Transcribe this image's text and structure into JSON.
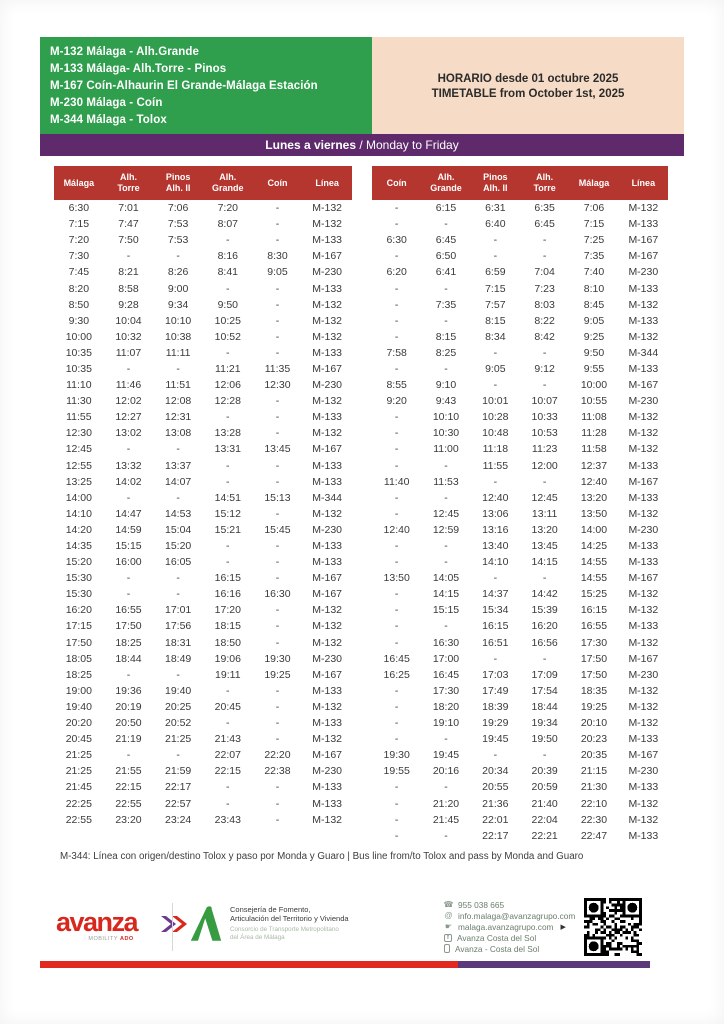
{
  "colors": {
    "route_green": "#2f9e4d",
    "schedule_peach": "#f6dcc6",
    "banner_purple": "#5f2a6b",
    "header_red": "#b5352f",
    "bar_red": "#e2291f",
    "bar_purple": "#5c3a7a",
    "avanza_red": "#d8281e",
    "junta_green": "#379b42"
  },
  "header": {
    "routes": [
      "M-132 Málaga - Alh.Grande",
      "M-133 Málaga- Alh.Torre - Pinos",
      "M-167 Coín-Alhaurin El Grande-Málaga Estación",
      "M-230 Málaga - Coín",
      "M-344 Málaga - Tolox"
    ],
    "schedule_line1": "HORARIO desde 01 octubre 2025",
    "schedule_line2": "TIMETABLE from October 1st, 2025",
    "day_banner_bold": "Lunes a viernes",
    "day_banner_rest": " / Monday to Friday"
  },
  "tables": {
    "outbound": {
      "headers": [
        "Málaga",
        "Alh.\nTorre",
        "Pinos\nAlh. II",
        "Alh.\nGrande",
        "Coín",
        "Línea"
      ],
      "rows": [
        [
          "6:30",
          "7:01",
          "7:06",
          "7:20",
          "-",
          "M-132"
        ],
        [
          "7:15",
          "7:47",
          "7:53",
          "8:07",
          "-",
          "M-132"
        ],
        [
          "7:20",
          "7:50",
          "7:53",
          "-",
          "-",
          "M-133"
        ],
        [
          "7:30",
          "-",
          "-",
          "8:16",
          "8:30",
          "M-167"
        ],
        [
          "7:45",
          "8:21",
          "8:26",
          "8:41",
          "9:05",
          "M-230"
        ],
        [
          "8:20",
          "8:58",
          "9:00",
          "-",
          "-",
          "M-133"
        ],
        [
          "8:50",
          "9:28",
          "9:34",
          "9:50",
          "-",
          "M-132"
        ],
        [
          "9:30",
          "10:04",
          "10:10",
          "10:25",
          "-",
          "M-132"
        ],
        [
          "10:00",
          "10:32",
          "10:38",
          "10:52",
          "-",
          "M-132"
        ],
        [
          "10:35",
          "11:07",
          "11:11",
          "-",
          "-",
          "M-133"
        ],
        [
          "10:35",
          "-",
          "-",
          "11:21",
          "11:35",
          "M-167"
        ],
        [
          "11:10",
          "11:46",
          "11:51",
          "12:06",
          "12:30",
          "M-230"
        ],
        [
          "11:30",
          "12:02",
          "12:08",
          "12:28",
          "-",
          "M-132"
        ],
        [
          "11:55",
          "12:27",
          "12:31",
          "-",
          "-",
          "M-133"
        ],
        [
          "12:30",
          "13:02",
          "13:08",
          "13:28",
          "-",
          "M-132"
        ],
        [
          "12:45",
          "-",
          "-",
          "13:31",
          "13:45",
          "M-167"
        ],
        [
          "12:55",
          "13:32",
          "13:37",
          "-",
          "-",
          "M-133"
        ],
        [
          "13:25",
          "14:02",
          "14:07",
          "-",
          "-",
          "M-133"
        ],
        [
          "14:00",
          "-",
          "-",
          "14:51",
          "15:13",
          "M-344"
        ],
        [
          "14:10",
          "14:47",
          "14:53",
          "15:12",
          "-",
          "M-132"
        ],
        [
          "14:20",
          "14:59",
          "15:04",
          "15:21",
          "15:45",
          "M-230"
        ],
        [
          "14:35",
          "15:15",
          "15:20",
          "-",
          "-",
          "M-133"
        ],
        [
          "15:20",
          "16:00",
          "16:05",
          "-",
          "-",
          "M-133"
        ],
        [
          "15:30",
          "-",
          "-",
          "16:15",
          "-",
          "M-167"
        ],
        [
          "15:30",
          "-",
          "-",
          "16:16",
          "16:30",
          "M-167"
        ],
        [
          "16:20",
          "16:55",
          "17:01",
          "17:20",
          "-",
          "M-132"
        ],
        [
          "17:15",
          "17:50",
          "17:56",
          "18:15",
          "-",
          "M-132"
        ],
        [
          "17:50",
          "18:25",
          "18:31",
          "18:50",
          "-",
          "M-132"
        ],
        [
          "18:05",
          "18:44",
          "18:49",
          "19:06",
          "19:30",
          "M-230"
        ],
        [
          "18:25",
          "-",
          "-",
          "19:11",
          "19:25",
          "M-167"
        ],
        [
          "19:00",
          "19:36",
          "19:40",
          "-",
          "-",
          "M-133"
        ],
        [
          "19:40",
          "20:19",
          "20:25",
          "20:45",
          "-",
          "M-132"
        ],
        [
          "20:20",
          "20:50",
          "20:52",
          "-",
          "-",
          "M-133"
        ],
        [
          "20:45",
          "21:19",
          "21:25",
          "21:43",
          "-",
          "M-132"
        ],
        [
          "21:25",
          "-",
          "-",
          "22:07",
          "22:20",
          "M-167"
        ],
        [
          "21:25",
          "21:55",
          "21:59",
          "22:15",
          "22:38",
          "M-230"
        ],
        [
          "21:45",
          "22:15",
          "22:17",
          "-",
          "-",
          "M-133"
        ],
        [
          "22:25",
          "22:55",
          "22:57",
          "-",
          "-",
          "M-133"
        ],
        [
          "22:55",
          "23:20",
          "23:24",
          "23:43",
          "-",
          "M-132"
        ],
        [
          "",
          "",
          "",
          "",
          "",
          ""
        ]
      ]
    },
    "return": {
      "headers": [
        "Coín",
        "Alh.\nGrande",
        "Pinos\nAlh. II",
        "Alh.\nTorre",
        "Málaga",
        "Línea"
      ],
      "rows": [
        [
          "-",
          "6:15",
          "6:31",
          "6:35",
          "7:06",
          "M-132"
        ],
        [
          "-",
          "-",
          "6:40",
          "6:45",
          "7:15",
          "M-133"
        ],
        [
          "6:30",
          "6:45",
          "-",
          "-",
          "7:25",
          "M-167"
        ],
        [
          "-",
          "6:50",
          "-",
          "-",
          "7:35",
          "M-167"
        ],
        [
          "6:20",
          "6:41",
          "6:59",
          "7:04",
          "7:40",
          "M-230"
        ],
        [
          "-",
          "-",
          "7:15",
          "7:23",
          "8:10",
          "M-133"
        ],
        [
          "-",
          "7:35",
          "7:57",
          "8:03",
          "8:45",
          "M-132"
        ],
        [
          "-",
          "-",
          "8:15",
          "8:22",
          "9:05",
          "M-133"
        ],
        [
          "-",
          "8:15",
          "8:34",
          "8:42",
          "9:25",
          "M-132"
        ],
        [
          "7:58",
          "8:25",
          "-",
          "-",
          "9:50",
          "M-344"
        ],
        [
          "-",
          "-",
          "9:05",
          "9:12",
          "9:55",
          "M-133"
        ],
        [
          "8:55",
          "9:10",
          "-",
          "-",
          "10:00",
          "M-167"
        ],
        [
          "9:20",
          "9:43",
          "10:01",
          "10:07",
          "10:55",
          "M-230"
        ],
        [
          "-",
          "10:10",
          "10:28",
          "10:33",
          "11:08",
          "M-132"
        ],
        [
          "-",
          "10:30",
          "10:48",
          "10:53",
          "11:28",
          "M-132"
        ],
        [
          "-",
          "11:00",
          "11:18",
          "11:23",
          "11:58",
          "M-132"
        ],
        [
          "-",
          "-",
          "11:55",
          "12:00",
          "12:37",
          "M-133"
        ],
        [
          "11:40",
          "11:53",
          "-",
          "-",
          "12:40",
          "M-167"
        ],
        [
          "-",
          "-",
          "12:40",
          "12:45",
          "13:20",
          "M-133"
        ],
        [
          "-",
          "12:45",
          "13:06",
          "13:11",
          "13:50",
          "M-132"
        ],
        [
          "12:40",
          "12:59",
          "13:16",
          "13:20",
          "14:00",
          "M-230"
        ],
        [
          "-",
          "-",
          "13:40",
          "13:45",
          "14:25",
          "M-133"
        ],
        [
          "-",
          "-",
          "14:10",
          "14:15",
          "14:55",
          "M-133"
        ],
        [
          "13:50",
          "14:05",
          "-",
          "-",
          "14:55",
          "M-167"
        ],
        [
          "-",
          "14:15",
          "14:37",
          "14:42",
          "15:25",
          "M-132"
        ],
        [
          "-",
          "15:15",
          "15:34",
          "15:39",
          "16:15",
          "M-132"
        ],
        [
          "-",
          "-",
          "16:15",
          "16:20",
          "16:55",
          "M-133"
        ],
        [
          "-",
          "16:30",
          "16:51",
          "16:56",
          "17:30",
          "M-132"
        ],
        [
          "16:45",
          "17:00",
          "-",
          "-",
          "17:50",
          "M-167"
        ],
        [
          "16:25",
          "16:45",
          "17:03",
          "17:09",
          "17:50",
          "M-230"
        ],
        [
          "-",
          "17:30",
          "17:49",
          "17:54",
          "18:35",
          "M-132"
        ],
        [
          "-",
          "18:20",
          "18:39",
          "18:44",
          "19:25",
          "M-132"
        ],
        [
          "-",
          "19:10",
          "19:29",
          "19:34",
          "20:10",
          "M-132"
        ],
        [
          "-",
          "-",
          "19:45",
          "19:50",
          "20:23",
          "M-133"
        ],
        [
          "19:30",
          "19:45",
          "-",
          "-",
          "20:35",
          "M-167"
        ],
        [
          "19:55",
          "20:16",
          "20:34",
          "20:39",
          "21:15",
          "M-230"
        ],
        [
          "-",
          "-",
          "20:55",
          "20:59",
          "21:30",
          "M-133"
        ],
        [
          "-",
          "21:20",
          "21:36",
          "21:40",
          "22:10",
          "M-132"
        ],
        [
          "-",
          "21:45",
          "22:01",
          "22:04",
          "22:30",
          "M-132"
        ],
        [
          "-",
          "-",
          "22:17",
          "22:21",
          "22:47",
          "M-133"
        ]
      ]
    }
  },
  "footnote": "M-344: Línea con origen/destino Tolox y paso por Monda y Guaro | Bus line from/to Tolox and pass by Monda and Guaro",
  "footer": {
    "avanza_word": "avanza",
    "avanza_sub_gray": "· MOBILITY ",
    "avanza_sub_red": "ADO",
    "junta_line1": "Consejería de Fomento,",
    "junta_line2": "Articulación del Territorio y Vivienda",
    "junta_line3": "Consorcio de Transporte Metropolitano",
    "junta_line4": "del Área de Málaga",
    "contacts": [
      {
        "icon": "phone",
        "text": "955 038 665",
        "arrow": ""
      },
      {
        "icon": "email",
        "text": "info.malaga@avanzagrupo.com",
        "arrow": ""
      },
      {
        "icon": "website",
        "text": "malaga.avanzagrupo.com",
        "arrow": "▶"
      },
      {
        "icon": "facebook",
        "text": "Avanza Costa del Sol",
        "arrow": ""
      },
      {
        "icon": "app",
        "text": "Avanza - Costa del Sol",
        "arrow": ""
      }
    ]
  }
}
